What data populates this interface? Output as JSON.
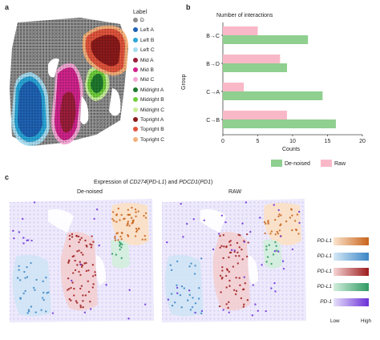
{
  "panel_a": {
    "letter": "a",
    "legend_title": "Label",
    "legend": [
      {
        "label": "D",
        "color": "#8c8c8c"
      },
      {
        "label": "Left A",
        "color": "#1f63b5"
      },
      {
        "label": "Left B",
        "color": "#2aa7d9"
      },
      {
        "label": "Left C",
        "color": "#a8dcef"
      },
      {
        "label": "Mid A",
        "color": "#9b1e3a"
      },
      {
        "label": "Mid B",
        "color": "#d1238c"
      },
      {
        "label": "Mid C",
        "color": "#f2a8d4"
      },
      {
        "label": "Midright A",
        "color": "#1f7a2e"
      },
      {
        "label": "Midright B",
        "color": "#6fcf3c"
      },
      {
        "label": "Midright C",
        "color": "#c7ef9a"
      },
      {
        "label": "Topright A",
        "color": "#8c1a1a"
      },
      {
        "label": "Topright B",
        "color": "#e2543c"
      },
      {
        "label": "Topright C",
        "color": "#f5b07a"
      }
    ]
  },
  "panel_b": {
    "letter": "b",
    "chart_data": {
      "type": "bar",
      "orientation": "horizontal",
      "title": "Number of interactions",
      "xlabel": "Counts",
      "ylabel": "Group",
      "categories": [
        "B→C",
        "B→D",
        "C→A",
        "C→B"
      ],
      "series": [
        {
          "name": "De-noised",
          "color": "#8fcf8f",
          "values": [
            12.2,
            9.2,
            14.3,
            16.2
          ]
        },
        {
          "name": "Raw",
          "color": "#f9b8c8",
          "values": [
            5.0,
            8.2,
            3.0,
            9.2
          ]
        }
      ],
      "xlim": [
        0,
        20
      ],
      "xticks": [
        0,
        5,
        10,
        15,
        20
      ],
      "legend_placement": "bottom",
      "grid": false
    }
  },
  "panel_c": {
    "letter": "c",
    "title_prefix": "Expression of ",
    "gene1": "CD274",
    "gene1_paren": "PD-L1",
    "title_and": " and ",
    "gene2": "PDCD1",
    "gene2_paren": "PD1",
    "left_title": "De-noised",
    "right_title": "RAW",
    "scale_labels": [
      {
        "label": "PD-L1",
        "from": "#fbe4cc",
        "to": "#c8641c"
      },
      {
        "label": "PD-L1",
        "from": "#d6e9f7",
        "to": "#3b86c6"
      },
      {
        "label": "PD-L1",
        "from": "#f6d4d4",
        "to": "#9c1c1c"
      },
      {
        "label": "PD-L1",
        "from": "#d2eedc",
        "to": "#2f9a62"
      },
      {
        "label": "PD-1",
        "from": "#e6e0fa",
        "to": "#6a2fd6"
      }
    ],
    "scale_low": "Low",
    "scale_high": "High"
  }
}
